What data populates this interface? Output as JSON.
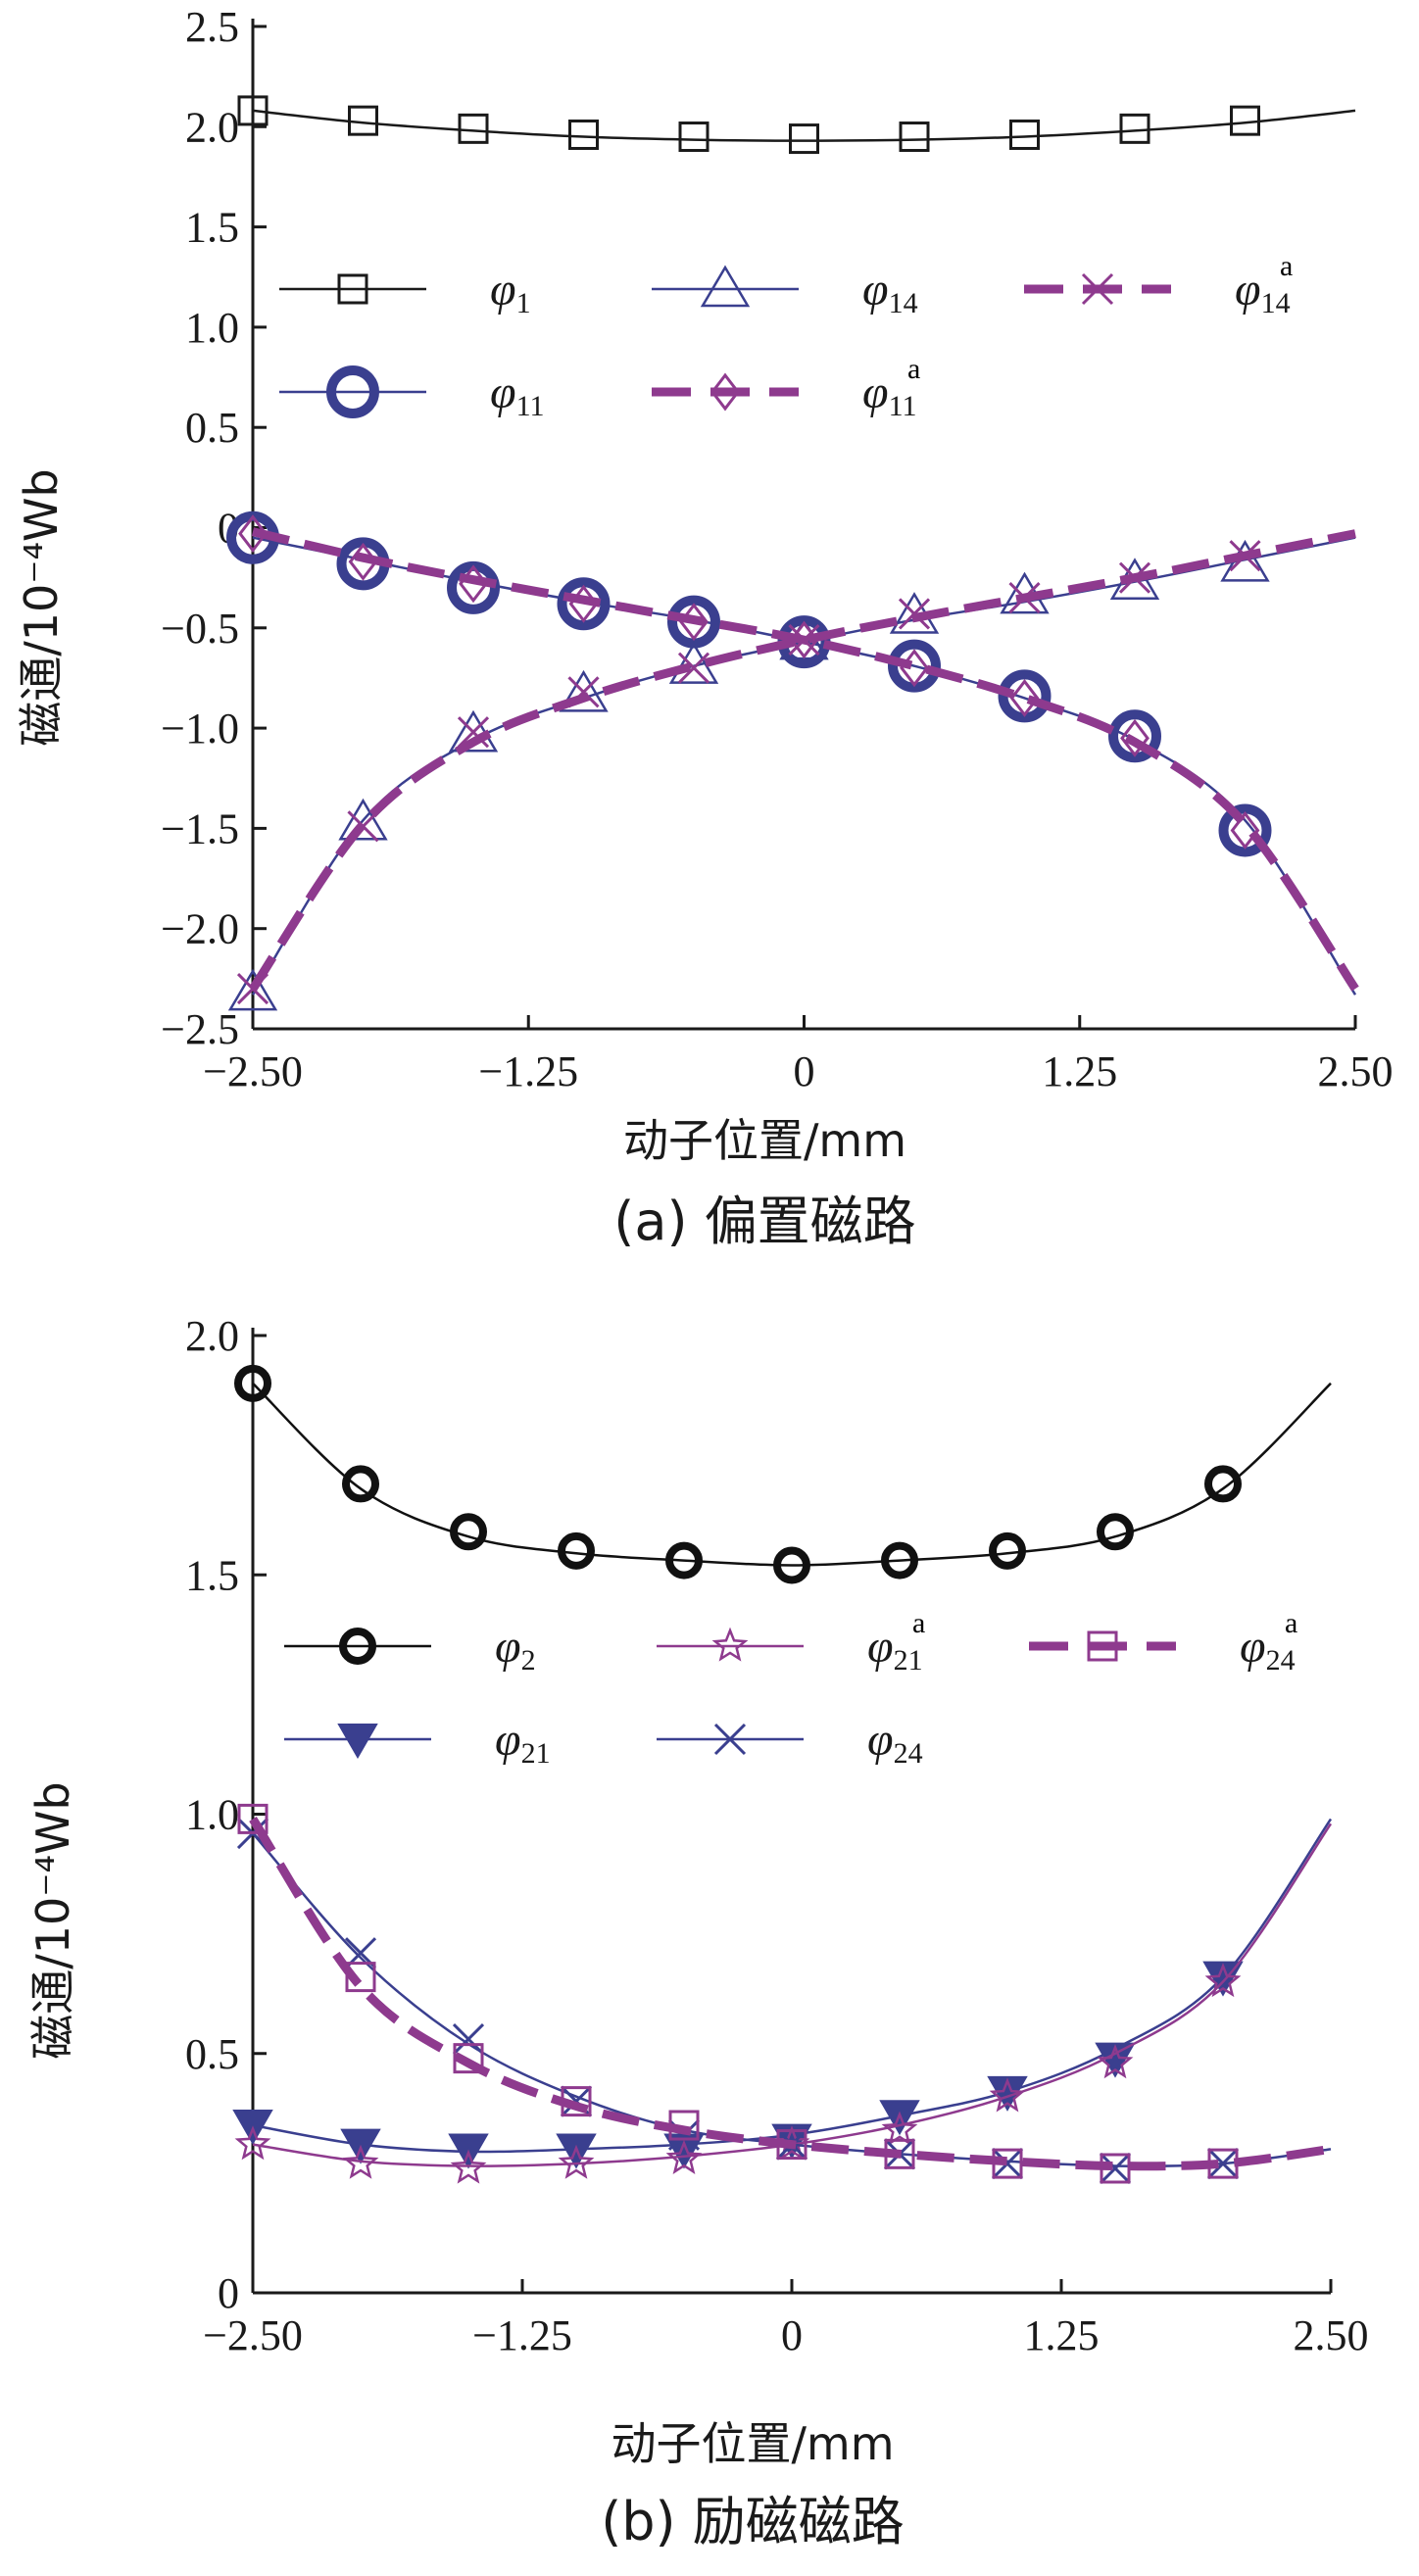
{
  "chart_data": [
    {
      "type": "line",
      "caption": "(a)  偏置磁路",
      "xlabel": "动子位置/mm",
      "ylabel": "磁通/10⁻⁴Wb",
      "xlim": [
        -2.5,
        2.5
      ],
      "ylim": [
        -2.5,
        2.5
      ],
      "xticks": [
        "−2.50",
        "−1.25",
        "0",
        "1.25",
        "2.50"
      ],
      "xtick_values": [
        -2.5,
        -1.25,
        0,
        1.25,
        2.5
      ],
      "yticks": [
        "2.5",
        "2.0",
        "1.5",
        "1.0",
        "0.5",
        "0",
        "−0.5",
        "−1.0",
        "−1.5",
        "−2.0",
        "−2.5"
      ],
      "ytick_values": [
        2.5,
        2.0,
        1.5,
        1.0,
        0.5,
        0,
        -0.5,
        -1.0,
        -1.5,
        -2.0,
        -2.5
      ],
      "grid": false,
      "legend_position": "middle",
      "series": [
        {
          "name": "φ1",
          "base": "φ",
          "sub": "1",
          "sup": "",
          "color": "#1a1a1a",
          "style": "solid",
          "marker": "square",
          "x": [
            -2.5,
            -2.0,
            -1.5,
            -1.0,
            -0.5,
            0,
            0.5,
            1.0,
            1.5,
            2.0
          ],
          "y": [
            2.08,
            2.03,
            1.99,
            1.96,
            1.95,
            1.94,
            1.95,
            1.96,
            1.99,
            2.03
          ],
          "curve_x": [
            -2.5,
            -2.0,
            -1.5,
            -1.0,
            -0.5,
            0,
            0.5,
            1.0,
            1.5,
            2.0,
            2.5
          ],
          "curve_y": [
            2.08,
            2.02,
            1.98,
            1.95,
            1.935,
            1.93,
            1.935,
            1.95,
            1.98,
            2.02,
            2.08
          ]
        },
        {
          "name": "φ11",
          "base": "φ",
          "sub": "11",
          "sup": "",
          "color": "#3a3f8f",
          "style": "solid",
          "marker": "circle",
          "x": [
            -2.5,
            -2.0,
            -1.5,
            -1.0,
            -0.5,
            0,
            0.5,
            1.0,
            1.5,
            2.0
          ],
          "y": [
            -0.05,
            -0.18,
            -0.3,
            -0.38,
            -0.47,
            -0.57,
            -0.69,
            -0.84,
            -1.04,
            -1.51
          ],
          "curve_x": [
            -2.5,
            -2.0,
            -1.5,
            -1.0,
            -0.5,
            0,
            0.5,
            1.0,
            1.5,
            2.0,
            2.5
          ],
          "curve_y": [
            -0.05,
            -0.16,
            -0.27,
            -0.37,
            -0.46,
            -0.57,
            -0.69,
            -0.85,
            -1.06,
            -1.46,
            -2.33
          ]
        },
        {
          "name": "φ11ᵃ",
          "base": "φ",
          "sub": "11",
          "sup": "a",
          "color": "#8e3a8e",
          "style": "dashed",
          "marker": "diamond",
          "x": [
            -2.5,
            -2.0,
            -1.5,
            -1.0,
            -0.5,
            0,
            0.5,
            1.0,
            1.5,
            2.0
          ],
          "y": [
            -0.03,
            -0.17,
            -0.28,
            -0.38,
            -0.47,
            -0.56,
            -0.7,
            -0.85,
            -1.05,
            -1.51
          ],
          "curve_x": [
            -2.5,
            -2.0,
            -1.5,
            -1.0,
            -0.5,
            0,
            0.5,
            1.0,
            1.5,
            2.0,
            2.5
          ],
          "curve_y": [
            -0.02,
            -0.15,
            -0.26,
            -0.36,
            -0.46,
            -0.56,
            -0.69,
            -0.85,
            -1.07,
            -1.48,
            -2.3
          ]
        },
        {
          "name": "φ14",
          "base": "φ",
          "sub": "14",
          "sup": "",
          "color": "#3a3f8f",
          "style": "solid",
          "marker": "triangle",
          "x": [
            -2.5,
            -2.0,
            -1.5,
            -1.0,
            -0.5,
            0,
            0.5,
            1.0,
            1.5,
            2.0
          ],
          "y": [
            -2.32,
            -1.47,
            -1.03,
            -0.83,
            -0.69,
            -0.57,
            -0.44,
            -0.34,
            -0.27,
            -0.18
          ],
          "curve_x": [
            -2.5,
            -2.0,
            -1.5,
            -1.0,
            -0.5,
            0,
            0.5,
            1.0,
            1.5,
            2.0,
            2.5
          ],
          "curve_y": [
            -2.33,
            -1.46,
            -1.06,
            -0.85,
            -0.69,
            -0.57,
            -0.46,
            -0.37,
            -0.27,
            -0.16,
            -0.05
          ]
        },
        {
          "name": "φ14ᵃ",
          "base": "φ",
          "sub": "14",
          "sup": "a",
          "color": "#8e3a8e",
          "style": "dashed",
          "marker": "x",
          "x": [
            -2.5,
            -2.0,
            -1.5,
            -1.0,
            -0.5,
            0,
            0.5,
            1.0,
            1.5,
            2.0
          ],
          "y": [
            -2.3,
            -1.49,
            -1.02,
            -0.82,
            -0.7,
            -0.56,
            -0.43,
            -0.35,
            -0.25,
            -0.14
          ],
          "curve_x": [
            -2.5,
            -2.0,
            -1.5,
            -1.0,
            -0.5,
            0,
            0.5,
            1.0,
            1.5,
            2.0,
            2.5
          ],
          "curve_y": [
            -2.3,
            -1.48,
            -1.07,
            -0.85,
            -0.69,
            -0.56,
            -0.45,
            -0.35,
            -0.25,
            -0.14,
            -0.03
          ]
        }
      ]
    },
    {
      "type": "line",
      "caption": "(b)  励磁磁路",
      "xlabel": "动子位置/mm",
      "ylabel": "磁通/10⁻⁴Wb",
      "xlim": [
        -2.5,
        2.5
      ],
      "ylim": [
        0,
        2.0
      ],
      "xticks": [
        "−2.50",
        "−1.25",
        "0",
        "1.25",
        "2.50"
      ],
      "xtick_values": [
        -2.5,
        -1.25,
        0,
        1.25,
        2.5
      ],
      "yticks": [
        "2.0",
        "1.5",
        "1.0",
        "0.5",
        "0"
      ],
      "ytick_values": [
        2.0,
        1.5,
        1.0,
        0.5,
        0
      ],
      "grid": false,
      "legend_position": "middle",
      "series": [
        {
          "name": "φ2",
          "base": "φ",
          "sub": "2",
          "sup": "",
          "color": "#111111",
          "style": "solid",
          "marker": "bigcircle",
          "x": [
            -2.5,
            -2.0,
            -1.5,
            -1.0,
            -0.5,
            0,
            0.5,
            1.0,
            1.5,
            2.0
          ],
          "y": [
            1.9,
            1.69,
            1.59,
            1.55,
            1.53,
            1.52,
            1.53,
            1.55,
            1.59,
            1.69
          ],
          "curve_x": [
            -2.5,
            -2.0,
            -1.5,
            -1.0,
            -0.5,
            0,
            0.5,
            1.0,
            1.5,
            2.0,
            2.5
          ],
          "curve_y": [
            1.9,
            1.68,
            1.58,
            1.545,
            1.53,
            1.52,
            1.53,
            1.545,
            1.58,
            1.68,
            1.9
          ]
        },
        {
          "name": "φ21",
          "base": "φ",
          "sub": "21",
          "sup": "",
          "color": "#3a3f8f",
          "style": "solid",
          "marker": "filltriangle",
          "x": [
            -2.5,
            -2.0,
            -1.5,
            -1.0,
            -0.5,
            0,
            0.5,
            1.0,
            1.5,
            2.0
          ],
          "y": [
            0.35,
            0.31,
            0.3,
            0.3,
            0.3,
            0.32,
            0.37,
            0.42,
            0.49,
            0.66
          ],
          "curve_x": [
            -2.5,
            -2.0,
            -1.5,
            -1.0,
            -0.5,
            0,
            0.5,
            1.0,
            1.5,
            2.0,
            2.5
          ],
          "curve_y": [
            0.35,
            0.31,
            0.295,
            0.3,
            0.31,
            0.33,
            0.37,
            0.42,
            0.51,
            0.66,
            0.99
          ]
        },
        {
          "name": "φ21ᵃ",
          "base": "φ",
          "sub": "21",
          "sup": "a",
          "color": "#8e3a8e",
          "style": "solid",
          "marker": "star",
          "x": [
            -2.5,
            -2.0,
            -1.5,
            -1.0,
            -0.5,
            0,
            0.5,
            1.0,
            1.5,
            2.0
          ],
          "y": [
            0.31,
            0.27,
            0.26,
            0.27,
            0.28,
            0.31,
            0.34,
            0.41,
            0.48,
            0.65
          ],
          "curve_x": [
            -2.5,
            -2.0,
            -1.5,
            -1.0,
            -0.5,
            0,
            0.5,
            1.0,
            1.5,
            2.0,
            2.5
          ],
          "curve_y": [
            0.31,
            0.275,
            0.265,
            0.27,
            0.285,
            0.31,
            0.35,
            0.41,
            0.5,
            0.65,
            0.98
          ]
        },
        {
          "name": "φ24",
          "base": "φ",
          "sub": "24",
          "sup": "",
          "color": "#3a3f8f",
          "style": "solid",
          "marker": "x",
          "x": [
            -2.5,
            -2.0,
            -1.5,
            -1.0,
            -0.5,
            0,
            0.5,
            1.0,
            1.5,
            2.0
          ],
          "y": [
            0.96,
            0.71,
            0.53,
            0.4,
            0.33,
            0.31,
            0.29,
            0.27,
            0.26,
            0.27
          ],
          "curve_x": [
            -2.5,
            -2.0,
            -1.5,
            -1.0,
            -0.5,
            0,
            0.5,
            1.0,
            1.5,
            2.0,
            2.5
          ],
          "curve_y": [
            0.96,
            0.7,
            0.52,
            0.41,
            0.34,
            0.31,
            0.29,
            0.275,
            0.265,
            0.27,
            0.3
          ]
        },
        {
          "name": "φ24ᵃ",
          "base": "φ",
          "sub": "24",
          "sup": "a",
          "color": "#8e3a8e",
          "style": "dashed",
          "marker": "square",
          "x": [
            -2.5,
            -2.0,
            -1.5,
            -1.0,
            -0.5,
            0,
            0.5,
            1.0,
            1.5,
            2.0
          ],
          "y": [
            0.99,
            0.66,
            0.49,
            0.4,
            0.35,
            0.31,
            0.29,
            0.27,
            0.26,
            0.27
          ],
          "curve_x": [
            -2.5,
            -2.0,
            -1.5,
            -1.0,
            -0.5,
            0,
            0.5,
            1.0,
            1.5,
            2.0,
            2.5
          ],
          "curve_y": [
            0.99,
            0.64,
            0.48,
            0.39,
            0.34,
            0.31,
            0.29,
            0.275,
            0.265,
            0.27,
            0.3
          ]
        }
      ]
    }
  ]
}
